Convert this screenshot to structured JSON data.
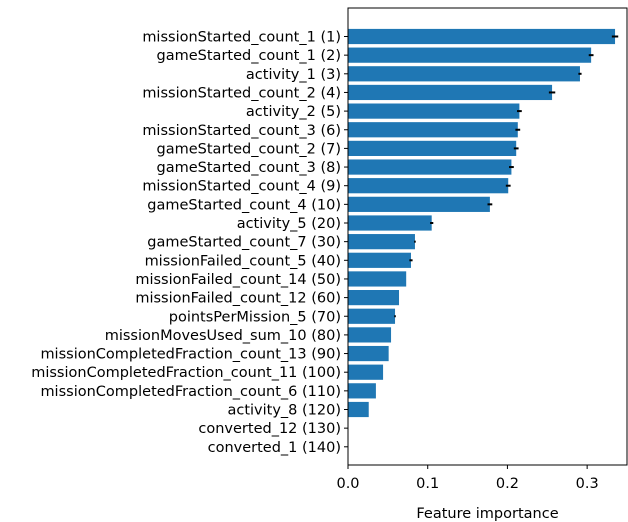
{
  "chart_data": {
    "type": "bar",
    "orientation": "horizontal",
    "xlabel": "Feature importance",
    "ylabel": "",
    "xlim": [
      0.0,
      0.35
    ],
    "xticks": [
      {
        "value": 0.0,
        "label": "0.0"
      },
      {
        "value": 0.1,
        "label": "0.1"
      },
      {
        "value": 0.2,
        "label": "0.2"
      },
      {
        "value": 0.3,
        "label": "0.3"
      }
    ],
    "grid": false,
    "bar_color": "#1f77b4",
    "error_bar_color": "#000000",
    "categories": [
      "missionStarted_count_1 (1)",
      "gameStarted_count_1 (2)",
      "activity_1 (3)",
      "missionStarted_count_2 (4)",
      "activity_2 (5)",
      "missionStarted_count_3 (6)",
      "gameStarted_count_2 (7)",
      "gameStarted_count_3 (8)",
      "missionStarted_count_4 (9)",
      "gameStarted_count_4 (10)",
      "activity_5 (20)",
      "gameStarted_count_7 (30)",
      "missionFailed_count_5 (40)",
      "missionFailed_count_14 (50)",
      "missionFailed_count_12 (60)",
      "pointsPerMission_5 (70)",
      "missionMovesUsed_sum_10 (80)",
      "missionCompletedFraction_count_13 (90)",
      "missionCompletedFraction_count_11 (100)",
      "missionCompletedFraction_count_6 (110)",
      "activity_8 (120)",
      "converted_12 (130)",
      "converted_1 (140)"
    ],
    "values": [
      0.335,
      0.305,
      0.291,
      0.256,
      0.215,
      0.213,
      0.211,
      0.205,
      0.201,
      0.178,
      0.105,
      0.084,
      0.079,
      0.073,
      0.064,
      0.059,
      0.054,
      0.051,
      0.044,
      0.035,
      0.026,
      0.0005,
      0.0005
    ],
    "errors": [
      0.004,
      0.003,
      0.002,
      0.004,
      0.003,
      0.003,
      0.003,
      0.003,
      0.003,
      0.003,
      0.002,
      0.001,
      0.002,
      0.0,
      0.0,
      0.001,
      0.0,
      0.0,
      0.0,
      0.0,
      0.0,
      0.0,
      0.0
    ]
  }
}
